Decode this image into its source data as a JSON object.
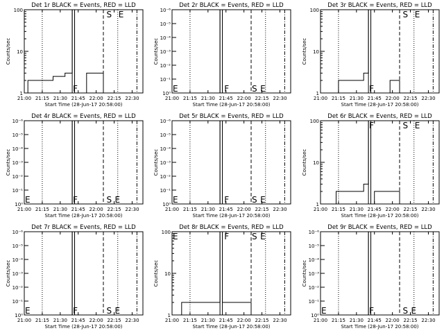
{
  "chart_data": [
    {
      "type": "line",
      "title": "Det 1r BLACK = Events, RED = LLD",
      "xlabel": "Start Time (28-Jun-17 20:58:00)",
      "ylabel": "Counts/sec",
      "x_ticks": [
        "21:00",
        "21:15",
        "21:30",
        "21:45",
        "22:00",
        "22:15",
        "22:30"
      ],
      "y_scale": "log",
      "y_ticks": [
        "1",
        "10",
        "100"
      ],
      "ylim": [
        1,
        100
      ],
      "markers": [
        {
          "label": "F",
          "pos": "bottom",
          "time": "21:40"
        },
        {
          "label": "S",
          "pos": "top",
          "time": "22:08"
        },
        {
          "label": "E",
          "pos": "top",
          "time": "22:18"
        }
      ],
      "series": [
        {
          "color": "#000000",
          "points": [
            [
              "21:03",
              1
            ],
            [
              "21:03",
              2
            ],
            [
              "21:24",
              2
            ],
            [
              "21:24",
              2.5
            ],
            [
              "21:34",
              2.5
            ],
            [
              "21:34",
              3
            ],
            [
              "21:40",
              3
            ],
            [
              "21:40",
              100
            ],
            [
              "21:42",
              100
            ],
            [
              "21:42",
              1
            ],
            [
              "21:52",
              1
            ],
            [
              "21:52",
              3
            ],
            [
              "22:06",
              3
            ],
            [
              "22:06",
              1
            ]
          ]
        }
      ]
    },
    {
      "type": "line",
      "title": "Det 2r BLACK = Events, RED = LLD",
      "xlabel": "Start Time (28-Jun-17 20:58:00)",
      "ylabel": "Counts/sec",
      "x_ticks": [
        "21:00",
        "21:15",
        "21:30",
        "21:45",
        "22:00",
        "22:15",
        "22:30"
      ],
      "y_scale": "log",
      "y_ticks": [
        "10⁰",
        "10⁻¹",
        "10⁻²",
        "10⁻³",
        "10⁻⁴",
        "10⁻⁵",
        "10⁻⁶"
      ],
      "markers": [
        {
          "label": "E",
          "pos": "bottom",
          "time": "21:00"
        },
        {
          "label": "F",
          "pos": "bottom",
          "time": "21:43"
        },
        {
          "label": "S",
          "pos": "bottom",
          "time": "22:06"
        },
        {
          "label": "E",
          "pos": "bottom",
          "time": "22:13"
        }
      ],
      "series": [
        {
          "color": "#000000",
          "points": [
            [
              "21:40",
              1e-06
            ],
            [
              "21:40",
              1
            ],
            [
              "21:42",
              1
            ],
            [
              "21:42",
              1e-06
            ]
          ]
        }
      ]
    },
    {
      "type": "line",
      "title": "Det 3r BLACK = Events, RED = LLD",
      "xlabel": "Start Time (28-Jun-17 20:58:00)",
      "ylabel": "Counts/sec",
      "x_ticks": [
        "21:00",
        "21:15",
        "21:30",
        "21:45",
        "22:00",
        "22:15",
        "22:30"
      ],
      "y_scale": "log",
      "y_ticks": [
        "1",
        "10",
        "100"
      ],
      "ylim": [
        1,
        100
      ],
      "markers": [
        {
          "label": "F",
          "pos": "bottom",
          "time": "21:40"
        },
        {
          "label": "S",
          "pos": "top",
          "time": "22:08"
        },
        {
          "label": "E",
          "pos": "top",
          "time": "22:18"
        }
      ],
      "series": [
        {
          "color": "#000000",
          "points": [
            [
              "21:15",
              1
            ],
            [
              "21:15",
              2
            ],
            [
              "21:36",
              2
            ],
            [
              "21:36",
              3
            ],
            [
              "21:40",
              3
            ],
            [
              "21:40",
              100
            ],
            [
              "21:42",
              100
            ],
            [
              "21:42",
              1
            ],
            [
              "21:58",
              1
            ],
            [
              "21:58",
              2
            ],
            [
              "22:06",
              2
            ],
            [
              "22:06",
              1
            ]
          ]
        },
        {
          "color": "#ff0000",
          "points": [
            [
              "21:21",
              100
            ],
            [
              "21:33",
              100
            ]
          ]
        }
      ]
    },
    {
      "type": "line",
      "title": "Det 4r BLACK = Events, RED = LLD",
      "xlabel": "Start Time (28-Jun-17 20:58:00)",
      "ylabel": "Counts/sec",
      "x_ticks": [
        "21:00",
        "21:15",
        "21:30",
        "21:45",
        "22:00",
        "22:15",
        "22:30"
      ],
      "y_scale": "log",
      "y_ticks": [
        "10⁰",
        "10⁻¹",
        "10⁻²",
        "10⁻³",
        "10⁻⁴",
        "10⁻⁵",
        "10⁻⁶"
      ],
      "markers": [
        {
          "label": "E",
          "pos": "bottom",
          "time": "21:00"
        },
        {
          "label": "F",
          "pos": "bottom",
          "time": "21:40"
        },
        {
          "label": "S",
          "pos": "bottom",
          "time": "22:08"
        },
        {
          "label": "E",
          "pos": "bottom",
          "time": "22:15"
        }
      ],
      "series": [
        {
          "color": "#000000",
          "points": [
            [
              "21:40",
              1e-06
            ],
            [
              "21:40",
              1
            ],
            [
              "21:42",
              1
            ],
            [
              "21:42",
              1e-06
            ]
          ]
        }
      ]
    },
    {
      "type": "line",
      "title": "Det 5r BLACK = Events, RED = LLD",
      "xlabel": "Start Time (28-Jun-17 20:58:00)",
      "ylabel": "Counts/sec",
      "x_ticks": [
        "21:00",
        "21:15",
        "21:30",
        "21:45",
        "22:00",
        "22:15",
        "22:30"
      ],
      "y_scale": "log",
      "y_ticks": [
        "10⁰",
        "10⁻¹",
        "10⁻²",
        "10⁻³",
        "10⁻⁴",
        "10⁻⁵",
        "10⁻⁶"
      ],
      "markers": [
        {
          "label": "E",
          "pos": "bottom",
          "time": "21:00"
        },
        {
          "label": "F",
          "pos": "bottom",
          "time": "21:43"
        },
        {
          "label": "S",
          "pos": "bottom",
          "time": "22:06"
        },
        {
          "label": "E",
          "pos": "bottom",
          "time": "22:13"
        }
      ],
      "series": [
        {
          "color": "#000000",
          "points": [
            [
              "21:40",
              1e-06
            ],
            [
              "21:40",
              1
            ],
            [
              "21:42",
              1
            ],
            [
              "21:42",
              1e-06
            ]
          ]
        }
      ]
    },
    {
      "type": "line",
      "title": "Det 6r BLACK = Events, RED = LLD",
      "xlabel": "Start Time (28-Jun-17 20:58:00)",
      "ylabel": "Counts/sec",
      "x_ticks": [
        "21:00",
        "21:15",
        "21:30",
        "21:45",
        "22:00",
        "22:15",
        "22:30"
      ],
      "y_scale": "log",
      "y_ticks": [
        "1",
        "10",
        "100"
      ],
      "ylim": [
        1,
        100
      ],
      "markers": [
        {
          "label": "F",
          "pos": "top",
          "time": "21:40"
        },
        {
          "label": "S",
          "pos": "top",
          "time": "22:08"
        },
        {
          "label": "E",
          "pos": "top",
          "time": "22:18"
        }
      ],
      "series": [
        {
          "color": "#000000",
          "points": [
            [
              "21:13",
              1
            ],
            [
              "21:13",
              2
            ],
            [
              "21:36",
              2
            ],
            [
              "21:36",
              3
            ],
            [
              "21:40",
              3
            ],
            [
              "21:40",
              100
            ],
            [
              "21:42",
              100
            ],
            [
              "21:42",
              1
            ],
            [
              "21:45",
              1
            ],
            [
              "21:45",
              2
            ],
            [
              "22:06",
              2
            ],
            [
              "22:06",
              1
            ]
          ]
        }
      ]
    },
    {
      "type": "line",
      "title": "Det 7r BLACK = Events, RED = LLD",
      "xlabel": "Start Time (28-Jun-17 20:58:00)",
      "ylabel": "Counts/sec",
      "x_ticks": [
        "21:00",
        "21:15",
        "21:30",
        "21:45",
        "22:00",
        "22:15",
        "22:30"
      ],
      "y_scale": "log",
      "y_ticks": [
        "10⁰",
        "10⁻¹",
        "10⁻²",
        "10⁻³",
        "10⁻⁴",
        "10⁻⁵",
        "10⁻⁶"
      ],
      "markers": [
        {
          "label": "E",
          "pos": "bottom",
          "time": "21:00"
        },
        {
          "label": "F",
          "pos": "bottom",
          "time": "21:40"
        },
        {
          "label": "S",
          "pos": "bottom",
          "time": "22:08"
        },
        {
          "label": "E",
          "pos": "bottom",
          "time": "22:15"
        }
      ],
      "series": [
        {
          "color": "#000000",
          "points": [
            [
              "21:40",
              1e-06
            ],
            [
              "21:40",
              1
            ],
            [
              "21:42",
              1
            ],
            [
              "21:42",
              1e-06
            ]
          ]
        }
      ]
    },
    {
      "type": "line",
      "title": "Det 8r BLACK = Events, RED = LLD",
      "xlabel": "Start Time (28-Jun-17 20:58:00)",
      "ylabel": "Counts/sec",
      "x_ticks": [
        "21:00",
        "21:15",
        "21:30",
        "21:45",
        "22:00",
        "22:15",
        "22:30"
      ],
      "y_scale": "log",
      "y_ticks": [
        "1",
        "10",
        "100"
      ],
      "ylim": [
        1,
        100
      ],
      "markers": [
        {
          "label": "E",
          "pos": "top",
          "time": "21:00"
        },
        {
          "label": "F",
          "pos": "top",
          "time": "21:43"
        },
        {
          "label": "S",
          "pos": "top",
          "time": "22:06"
        },
        {
          "label": "E",
          "pos": "top",
          "time": "22:13"
        }
      ],
      "series": [
        {
          "color": "#000000",
          "points": [
            [
              "21:08",
              1
            ],
            [
              "21:08",
              2
            ],
            [
              "21:40",
              2
            ],
            [
              "21:40",
              100
            ],
            [
              "21:42",
              100
            ],
            [
              "21:42",
              2
            ],
            [
              "22:06",
              2
            ],
            [
              "22:06",
              1
            ]
          ]
        }
      ]
    },
    {
      "type": "line",
      "title": "Det 9r BLACK = Events, RED = LLD",
      "xlabel": "Start Time (28-Jun-17 20:58:00)",
      "ylabel": "Counts/sec",
      "x_ticks": [
        "21:00",
        "21:15",
        "21:30",
        "21:45",
        "22:00",
        "22:15",
        "22:30"
      ],
      "y_scale": "log",
      "y_ticks": [
        "10⁰",
        "10⁻¹",
        "10⁻²",
        "10⁻³",
        "10⁻⁴",
        "10⁻⁵",
        "10⁻⁶"
      ],
      "markers": [
        {
          "label": "E",
          "pos": "bottom",
          "time": "21:00"
        },
        {
          "label": "F",
          "pos": "bottom",
          "time": "21:40"
        },
        {
          "label": "S",
          "pos": "bottom",
          "time": "22:08"
        },
        {
          "label": "E",
          "pos": "bottom",
          "time": "22:15"
        }
      ],
      "series": [
        {
          "color": "#000000",
          "points": [
            [
              "21:40",
              1e-06
            ],
            [
              "21:40",
              1
            ],
            [
              "21:42",
              1
            ],
            [
              "21:42",
              1e-06
            ]
          ]
        }
      ]
    }
  ],
  "event_times": {
    "dotted": [
      "21:15",
      "22:18"
    ],
    "solid": [
      "21:40",
      "21:42"
    ],
    "dashed": [
      "22:06"
    ],
    "dashdot": [
      "22:34"
    ]
  }
}
